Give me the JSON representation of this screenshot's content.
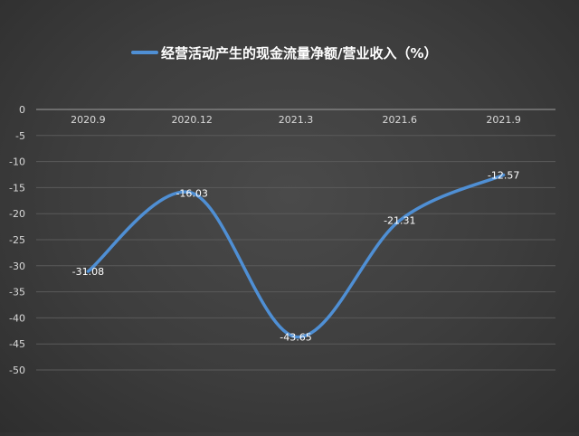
{
  "chart_data": {
    "type": "line",
    "title": "",
    "legend_position": "top",
    "categories": [
      "2020.9",
      "2020.12",
      "2021.3",
      "2021.6",
      "2021.9"
    ],
    "series": [
      {
        "name": "经营活动产生的现金流量净额/营业收入（%）",
        "values": [
          -31.08,
          -16.03,
          -43.65,
          -21.31,
          -12.57
        ],
        "data_labels": [
          "-31.08",
          "-16.03",
          "-43.65",
          "-21.31",
          "-12.57"
        ]
      }
    ],
    "ylim": [
      -50,
      0
    ],
    "y_ticks": [
      "0",
      "-5",
      "-10",
      "-15",
      "-20",
      "-25",
      "-30",
      "-35",
      "-40",
      "-45",
      "-50"
    ],
    "x_axis_position": "top",
    "grid": true,
    "line_smooth": true
  },
  "colors": {
    "series": "#4f8fd4",
    "text": "#d9d9d9",
    "grid": "#5a5a5a",
    "label": "#ffffff"
  }
}
